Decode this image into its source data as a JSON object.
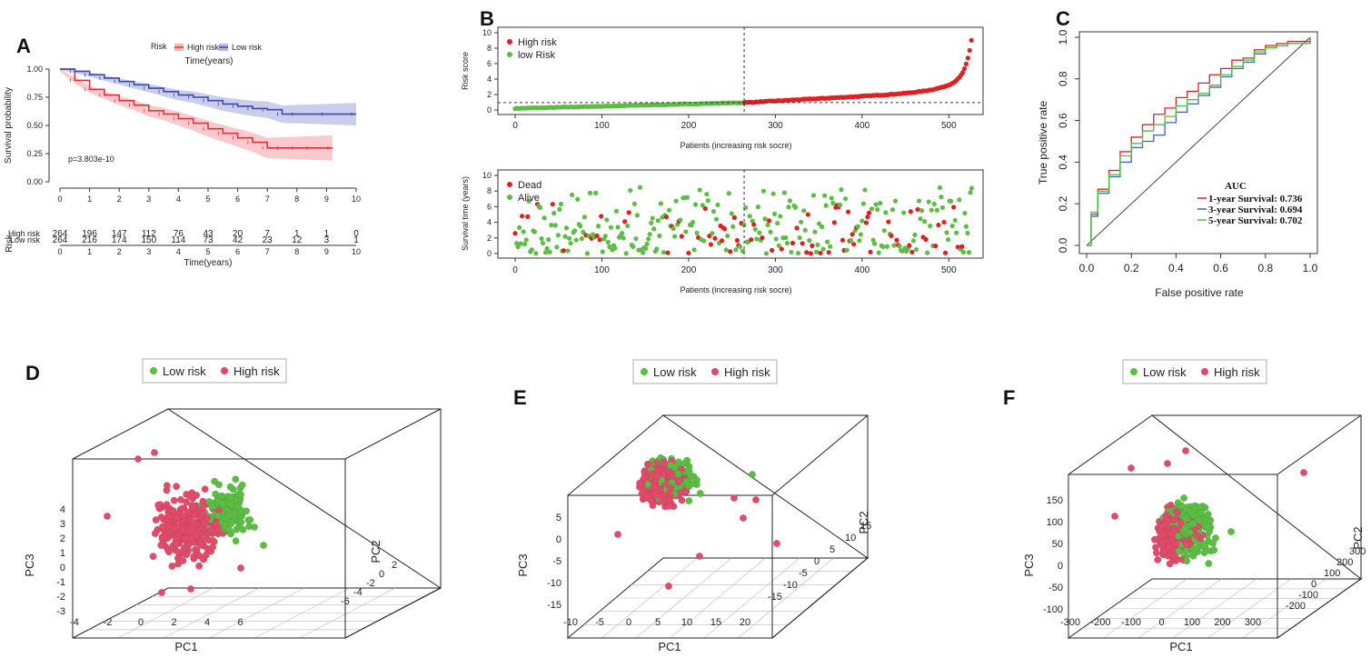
{
  "colors": {
    "high": "#e0313a",
    "low": "#3b4aa6",
    "green": "#5cbd45",
    "pink": "#e04b6a",
    "red": "#e02020",
    "blue": "#3f5fc8",
    "green2": "#4fbf40"
  },
  "chart_data": [
    {
      "panel": "A",
      "type": "line",
      "title": "",
      "legend_title": "Risk",
      "legend": [
        "High risk",
        "Low risk"
      ],
      "xlabel": "Time(years)",
      "ylabel": "Survival probability",
      "xlim": [
        0,
        10
      ],
      "ylim": [
        0,
        1
      ],
      "x_ticks": [
        "0",
        "1",
        "2",
        "3",
        "4",
        "5",
        "6",
        "7",
        "8",
        "9",
        "10"
      ],
      "y_ticks": [
        "0.00",
        "0.25",
        "0.50",
        "0.75",
        "1.00"
      ],
      "pvalue": "p=3.803e-10",
      "series": [
        {
          "name": "High risk",
          "x": [
            0,
            0.5,
            1,
            1.5,
            2,
            2.5,
            3,
            3.5,
            4,
            4.5,
            5,
            5.5,
            6,
            6.5,
            7,
            7.5,
            8,
            8.5,
            9.2
          ],
          "values": [
            1,
            0.9,
            0.82,
            0.77,
            0.72,
            0.68,
            0.63,
            0.6,
            0.56,
            0.52,
            0.47,
            0.43,
            0.39,
            0.35,
            0.3,
            0.3,
            0.3,
            0.3,
            0.3
          ]
        },
        {
          "name": "Low risk",
          "x": [
            0,
            0.5,
            1,
            1.5,
            2,
            2.5,
            3,
            3.5,
            4,
            4.5,
            5,
            5.5,
            6,
            6.5,
            7,
            7.5,
            8,
            9,
            10
          ],
          "values": [
            1,
            0.98,
            0.95,
            0.92,
            0.89,
            0.86,
            0.83,
            0.8,
            0.77,
            0.75,
            0.72,
            0.69,
            0.67,
            0.65,
            0.64,
            0.6,
            0.6,
            0.6,
            0.6
          ]
        }
      ],
      "risk_table": {
        "title": "Risk",
        "xlabel": "Time(years)",
        "rows": [
          {
            "name": "High risk",
            "values": [
              "264",
              "196",
              "147",
              "112",
              "76",
              "43",
              "20",
              "7",
              "1",
              "1",
              "0"
            ]
          },
          {
            "name": "Low risk",
            "values": [
              "264",
              "216",
              "174",
              "150",
              "114",
              "73",
              "42",
              "23",
              "12",
              "3",
              "1"
            ]
          }
        ]
      }
    },
    {
      "panel": "B",
      "type": "scatter",
      "top": {
        "ylabel": "Risk score",
        "xlabel": "Patients (increasing risk socre)",
        "legend": [
          "High risk",
          "low Risk"
        ],
        "xlim": [
          0,
          530
        ],
        "ylim": [
          0,
          10
        ],
        "x_ticks": [
          "0",
          "100",
          "200",
          "300",
          "400",
          "500"
        ],
        "y_ticks": [
          "0",
          "2",
          "4",
          "6",
          "8",
          "10"
        ],
        "cutoff_patient": 264,
        "cutoff_score": 0.95
      },
      "bottom": {
        "ylabel": "Survival time (years)",
        "xlabel": "Patients (increasing risk socre)",
        "legend": [
          "Dead",
          "Alive"
        ],
        "xlim": [
          0,
          530
        ],
        "ylim": [
          0,
          10
        ],
        "x_ticks": [
          "0",
          "100",
          "200",
          "300",
          "400",
          "500"
        ],
        "y_ticks": [
          "0",
          "2",
          "4",
          "6",
          "8",
          "10"
        ]
      }
    },
    {
      "panel": "C",
      "type": "line",
      "xlabel": "False positive rate",
      "ylabel": "True positive rate",
      "x_ticks": [
        "0.0",
        "0.2",
        "0.4",
        "0.6",
        "0.8",
        "1.0"
      ],
      "y_ticks": [
        "0.0",
        "0.2",
        "0.4",
        "0.6",
        "0.8",
        "1.0"
      ],
      "legend_title": "AUC",
      "series": [
        {
          "name": "1-year Survival: 0.736",
          "x": [
            0,
            0.02,
            0.05,
            0.1,
            0.15,
            0.2,
            0.25,
            0.3,
            0.35,
            0.4,
            0.45,
            0.5,
            0.55,
            0.6,
            0.65,
            0.7,
            0.75,
            0.8,
            0.85,
            0.9,
            1
          ],
          "values": [
            0,
            0.15,
            0.27,
            0.36,
            0.45,
            0.52,
            0.58,
            0.63,
            0.66,
            0.71,
            0.74,
            0.78,
            0.82,
            0.85,
            0.89,
            0.9,
            0.94,
            0.96,
            0.97,
            0.98,
            1
          ]
        },
        {
          "name": "3-year Survival: 0.694",
          "x": [
            0,
            0.02,
            0.05,
            0.1,
            0.15,
            0.2,
            0.25,
            0.3,
            0.35,
            0.4,
            0.45,
            0.5,
            0.55,
            0.6,
            0.65,
            0.7,
            0.75,
            0.8,
            0.85,
            0.9,
            1
          ],
          "values": [
            0,
            0.14,
            0.25,
            0.33,
            0.4,
            0.47,
            0.5,
            0.53,
            0.59,
            0.64,
            0.68,
            0.72,
            0.76,
            0.81,
            0.85,
            0.88,
            0.92,
            0.95,
            0.96,
            0.97,
            1
          ]
        },
        {
          "name": "5-year Survival: 0.702",
          "x": [
            0,
            0.02,
            0.05,
            0.1,
            0.15,
            0.2,
            0.25,
            0.3,
            0.35,
            0.4,
            0.45,
            0.5,
            0.55,
            0.6,
            0.65,
            0.7,
            0.75,
            0.8,
            0.85,
            0.9,
            1
          ],
          "values": [
            0,
            0.16,
            0.26,
            0.34,
            0.43,
            0.49,
            0.55,
            0.58,
            0.62,
            0.67,
            0.7,
            0.73,
            0.77,
            0.82,
            0.86,
            0.89,
            0.93,
            0.95,
            0.96,
            0.97,
            1
          ]
        }
      ]
    },
    {
      "panel": "D",
      "type": "scatter",
      "legend": [
        "Low risk",
        "High risk"
      ],
      "xlabel": "PC1",
      "ylabel": "PC3",
      "zlabel": "PC2",
      "x_ticks": [
        "-4",
        "-2",
        "0",
        "2",
        "4",
        "6"
      ],
      "y_ticks": [
        "-3",
        "-2",
        "-1",
        "0",
        "1",
        "2",
        "3",
        "4"
      ],
      "z_ticks": [
        "-6",
        "-4",
        "-2",
        "0",
        "2"
      ]
    },
    {
      "panel": "E",
      "type": "scatter",
      "legend": [
        "Low risk",
        "High risk"
      ],
      "xlabel": "PC1",
      "ylabel": "PC3",
      "zlabel": "PC2",
      "x_ticks": [
        "-10",
        "-5",
        "0",
        "5",
        "10",
        "15",
        "20"
      ],
      "y_ticks": [
        "-15",
        "-10",
        "-5",
        "0",
        "5"
      ],
      "z_ticks": [
        "-15",
        "-10",
        "-5",
        "0",
        "5",
        "10",
        "15"
      ]
    },
    {
      "panel": "F",
      "type": "scatter",
      "legend": [
        "Low risk",
        "High risk"
      ],
      "xlabel": "PC1",
      "ylabel": "PC3",
      "zlabel": "PC2",
      "x_ticks": [
        "-300",
        "-200",
        "-100",
        "0",
        "100",
        "200",
        "300"
      ],
      "y_ticks": [
        "-100",
        "-50",
        "0",
        "50",
        "100",
        "150"
      ],
      "z_ticks": [
        "-200",
        "-100",
        "0",
        "100",
        "200",
        "300"
      ]
    }
  ],
  "panel_labels": [
    "A",
    "B",
    "C",
    "D",
    "E",
    "F"
  ]
}
